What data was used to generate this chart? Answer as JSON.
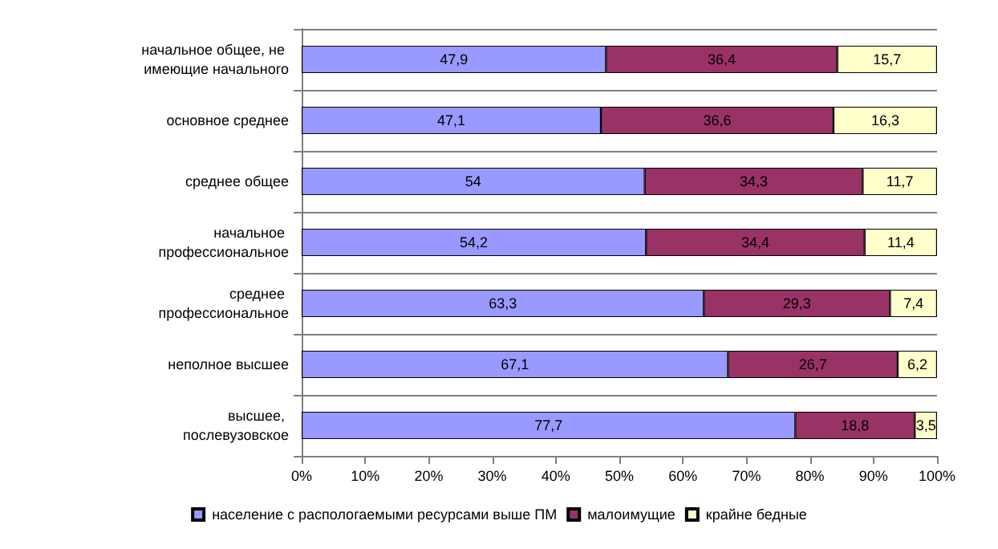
{
  "chart_data": {
    "type": "bar",
    "orientation": "horizontal",
    "stacked": true,
    "categories": [
      "начальное общее, не имеющие начального",
      "основное среднее",
      "среднее общее",
      "начальное профессиональное",
      "среднее профессиональное",
      "неполное высшее",
      "высшее, послевузовское"
    ],
    "series": [
      {
        "name": "население с распологаемыми ресурсами выше ПМ",
        "color": "#9999ff",
        "values": [
          47.9,
          47.1,
          54,
          54.2,
          63.3,
          67.1,
          77.7
        ],
        "value_labels": [
          "47,9",
          "47,1",
          "54",
          "54,2",
          "63,3",
          "67,1",
          "77,7"
        ]
      },
      {
        "name": "малоимущие",
        "color": "#993366",
        "values": [
          36.4,
          36.6,
          34.3,
          34.4,
          29.3,
          26.7,
          18.8
        ],
        "value_labels": [
          "36,4",
          "36,6",
          "34,3",
          "34,4",
          "29,3",
          "26,7",
          "18,8"
        ]
      },
      {
        "name": "крайне бедные",
        "color": "#ffffcc",
        "values": [
          15.7,
          16.3,
          11.7,
          11.4,
          7.4,
          6.2,
          3.5
        ],
        "value_labels": [
          "15,7",
          "16,3",
          "11,7",
          "11,4",
          "7,4",
          "6,2",
          "3,5"
        ]
      }
    ],
    "xlim": [
      0,
      100
    ],
    "xticks": [
      {
        "value": 0,
        "label": "0%"
      },
      {
        "value": 10,
        "label": "10%"
      },
      {
        "value": 20,
        "label": "20%"
      },
      {
        "value": 30,
        "label": "30%"
      },
      {
        "value": 40,
        "label": "40%"
      },
      {
        "value": 50,
        "label": "50%"
      },
      {
        "value": 60,
        "label": "60%"
      },
      {
        "value": 70,
        "label": "70%"
      },
      {
        "value": 80,
        "label": "80%"
      },
      {
        "value": 90,
        "label": "90%"
      },
      {
        "value": 100,
        "label": "100%"
      }
    ],
    "grid": "y",
    "legend": "bottom"
  }
}
